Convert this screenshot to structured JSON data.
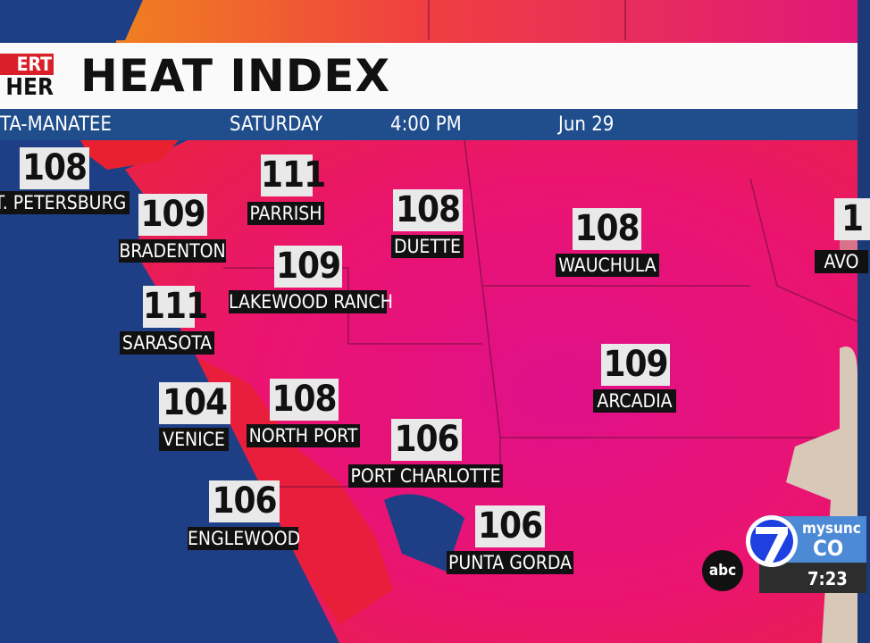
{
  "header": {
    "title": "HEAT INDEX",
    "logo_line1": "ERT",
    "logo_line2": "HER",
    "region": "TA-MANATEE",
    "day": "SATURDAY",
    "time": "4:00 PM",
    "date": "Jun 29"
  },
  "map": {
    "colors": {
      "gulf": "#1e3f86",
      "land_hot": "#e8106a",
      "land_coast": "#e8203a",
      "header_blue": "#204e8c"
    },
    "locations": [
      {
        "name": "T. PETERSBURG",
        "value": "108"
      },
      {
        "name": "PARRISH",
        "value": "111"
      },
      {
        "name": "BRADENTON",
        "value": "109"
      },
      {
        "name": "DUETTE",
        "value": "108"
      },
      {
        "name": "WAUCHULA",
        "value": "108"
      },
      {
        "name": "LAKEWOOD RANCH",
        "value": "109"
      },
      {
        "name": "SARASOTA",
        "value": "111"
      },
      {
        "name": "ARCADIA",
        "value": "109"
      },
      {
        "name": "VENICE",
        "value": "104"
      },
      {
        "name": "NORTH PORT",
        "value": "108"
      },
      {
        "name": "PORT CHARLOTTE",
        "value": "106"
      },
      {
        "name": "ENGLEWOOD",
        "value": "106"
      },
      {
        "name": "PUNTA GORDA",
        "value": "106"
      },
      {
        "name": "AVO",
        "value": "1"
      }
    ]
  },
  "bug": {
    "network": "abc",
    "channel": "7",
    "brand": "mysunc",
    "brand2": "CO",
    "clock": "7:23"
  }
}
